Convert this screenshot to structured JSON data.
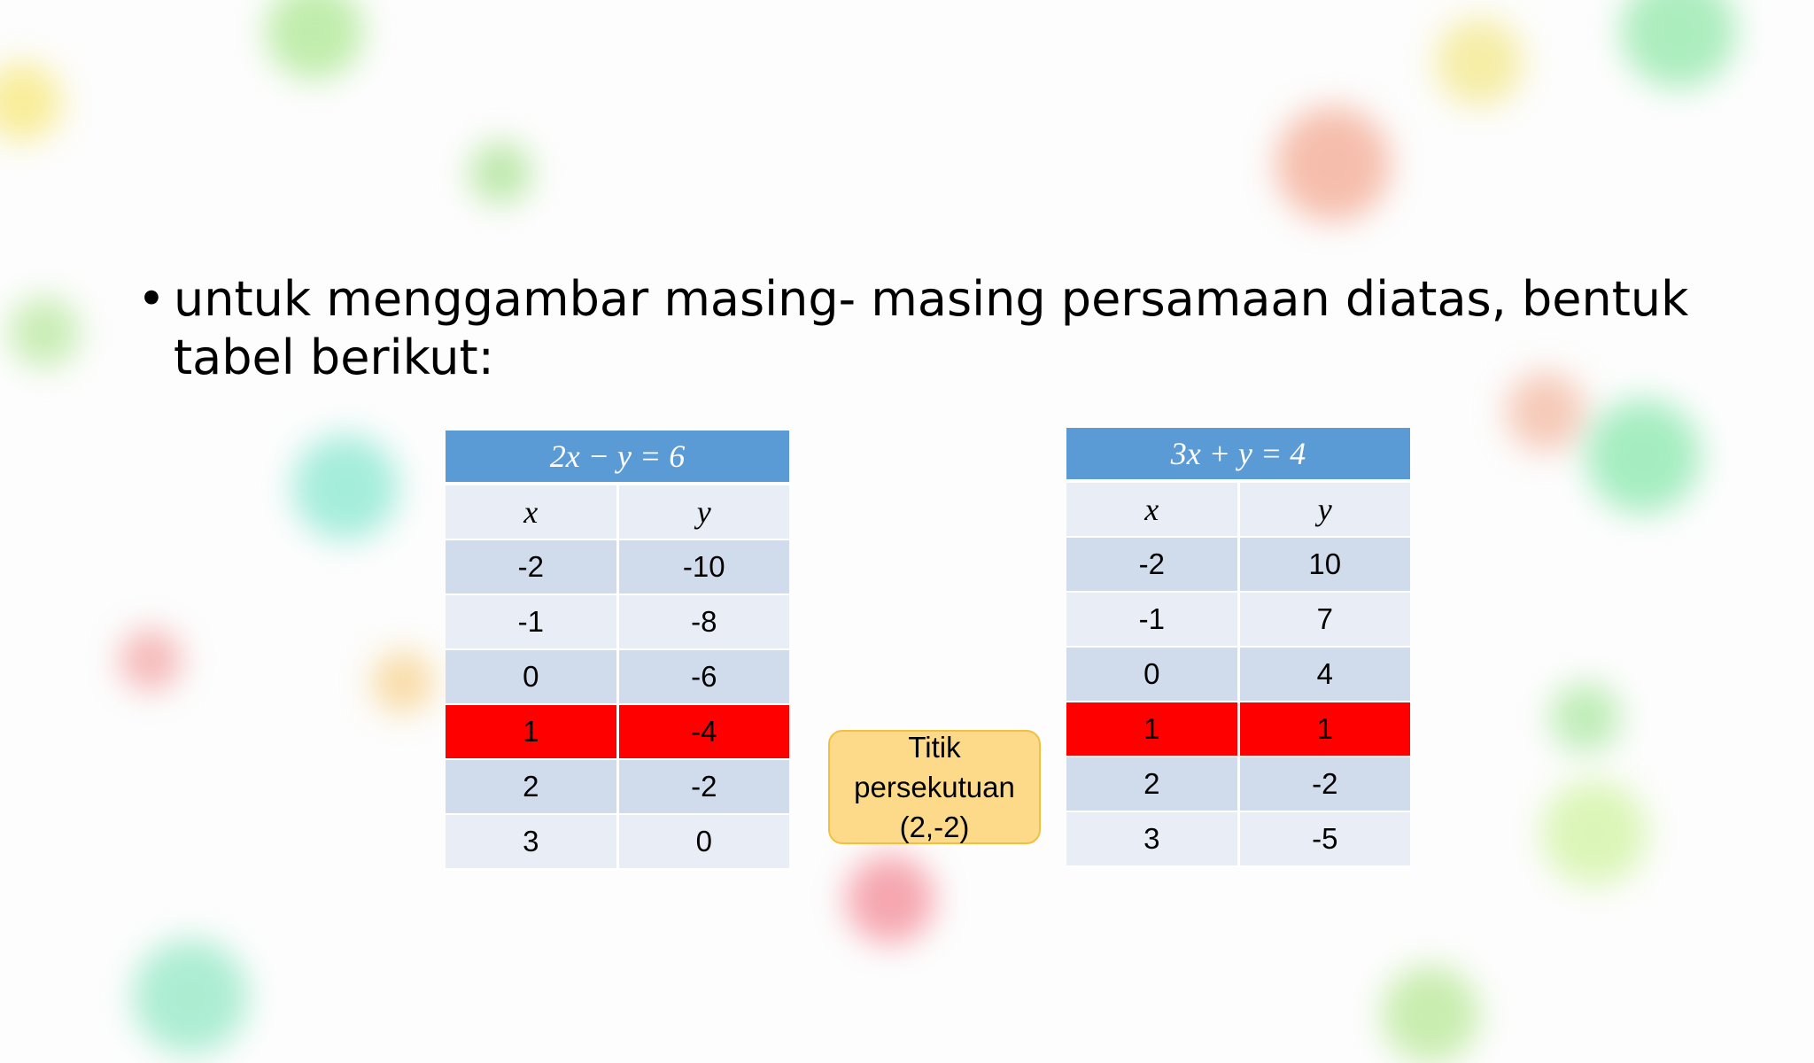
{
  "bullet": "untuk menggambar masing- masing persamaan diatas, bentuk tabel berikut:",
  "tables": [
    {
      "title": "2x − y = 6",
      "headers": [
        "x",
        "y"
      ],
      "rows": [
        [
          -2,
          -10
        ],
        [
          -1,
          -8
        ],
        [
          0,
          -6
        ],
        [
          1,
          -4
        ],
        [
          2,
          -2
        ],
        [
          3,
          0
        ]
      ]
    },
    {
      "title": "3x + y = 4",
      "headers": [
        "x",
        "y"
      ],
      "rows": [
        [
          -2,
          10
        ],
        [
          -1,
          7
        ],
        [
          0,
          4
        ],
        [
          1,
          1
        ],
        [
          2,
          -2
        ],
        [
          3,
          -5
        ]
      ]
    }
  ],
  "callout": "Titik persekutuan (2,-2)"
}
